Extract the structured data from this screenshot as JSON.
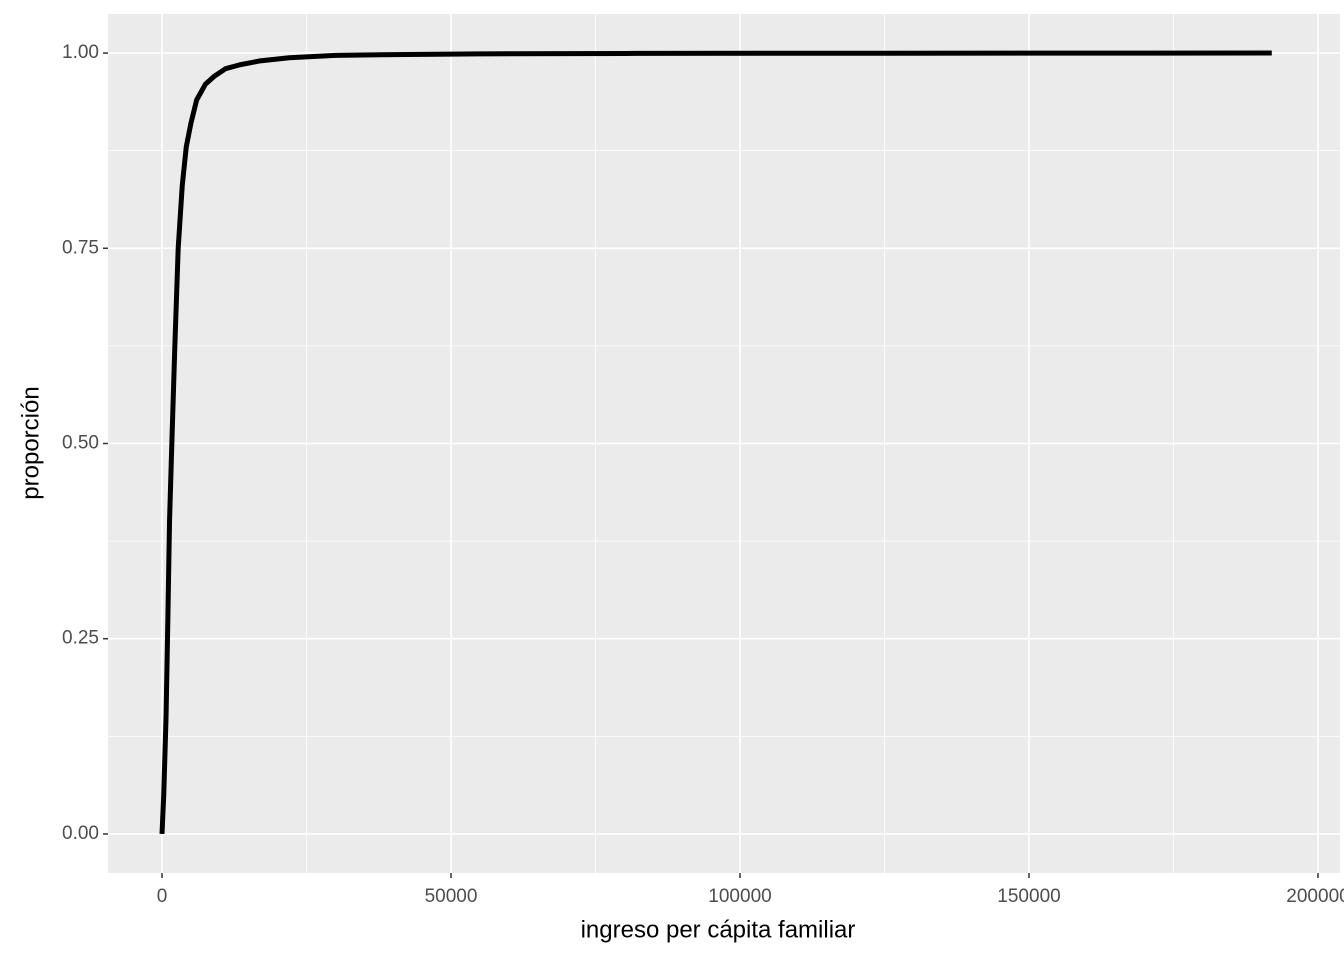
{
  "chart_data": {
    "type": "line",
    "x_label": "ingreso per cápita familiar",
    "y_label": "proporción",
    "x": [
      0,
      300,
      700,
      1000,
      1300,
      1700,
      2200,
      2800,
      3500,
      4200,
      5000,
      6000,
      7500,
      9000,
      11000,
      13500,
      17000,
      22000,
      30000,
      40000,
      55000,
      80000,
      120000,
      192000
    ],
    "values": [
      0,
      0.05,
      0.15,
      0.27,
      0.4,
      0.5,
      0.62,
      0.75,
      0.83,
      0.88,
      0.91,
      0.94,
      0.96,
      0.97,
      0.98,
      0.985,
      0.99,
      0.994,
      0.997,
      0.998,
      0.999,
      0.9995,
      0.9998,
      1
    ],
    "color": "#000000",
    "xlim": [
      -9343,
      203806
    ],
    "ylim": [
      -0.05,
      1.05
    ],
    "xticks": [
      0,
      50000,
      100000,
      150000,
      200000
    ],
    "yticks": [
      {
        "value": 0,
        "label": "0.00"
      },
      {
        "value": 0.25,
        "label": "0.25"
      },
      {
        "value": 0.5,
        "label": "0.50"
      },
      {
        "value": 0.75,
        "label": "0.75"
      },
      {
        "value": 1,
        "label": "1.00"
      }
    ],
    "minor_xticks": [
      25000,
      75000,
      125000,
      175000
    ],
    "minor_yticks": [
      0.125,
      0.375,
      0.625,
      0.875
    ],
    "grid": true
  }
}
